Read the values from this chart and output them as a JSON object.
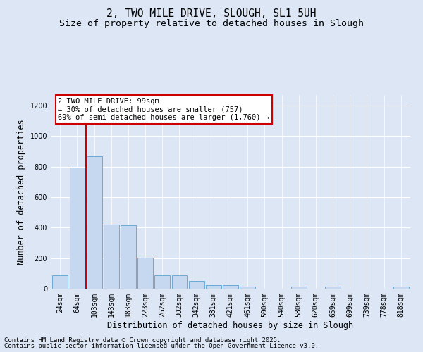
{
  "title": "2, TWO MILE DRIVE, SLOUGH, SL1 5UH",
  "subtitle": "Size of property relative to detached houses in Slough",
  "xlabel": "Distribution of detached houses by size in Slough",
  "ylabel": "Number of detached properties",
  "categories": [
    "24sqm",
    "64sqm",
    "103sqm",
    "143sqm",
    "183sqm",
    "223sqm",
    "262sqm",
    "302sqm",
    "342sqm",
    "381sqm",
    "421sqm",
    "461sqm",
    "500sqm",
    "540sqm",
    "580sqm",
    "620sqm",
    "659sqm",
    "699sqm",
    "739sqm",
    "778sqm",
    "818sqm"
  ],
  "values": [
    90,
    795,
    868,
    420,
    415,
    205,
    90,
    90,
    50,
    25,
    25,
    15,
    0,
    0,
    15,
    0,
    15,
    0,
    0,
    0,
    15
  ],
  "bar_color": "#c5d8f0",
  "bar_edge_color": "#6aaad4",
  "background_color": "#dce6f5",
  "vline_x_index": 2,
  "vline_color": "#cc0000",
  "annotation_text": "2 TWO MILE DRIVE: 99sqm\n← 30% of detached houses are smaller (757)\n69% of semi-detached houses are larger (1,760) →",
  "annotation_box_color": "#cc0000",
  "footer_line1": "Contains HM Land Registry data © Crown copyright and database right 2025.",
  "footer_line2": "Contains public sector information licensed under the Open Government Licence v3.0.",
  "ylim": [
    0,
    1270
  ],
  "yticks": [
    0,
    200,
    400,
    600,
    800,
    1000,
    1200
  ],
  "title_fontsize": 10.5,
  "subtitle_fontsize": 9.5,
  "xlabel_fontsize": 8.5,
  "ylabel_fontsize": 8.5,
  "tick_fontsize": 7,
  "annotation_fontsize": 7.5,
  "footer_fontsize": 6.5
}
